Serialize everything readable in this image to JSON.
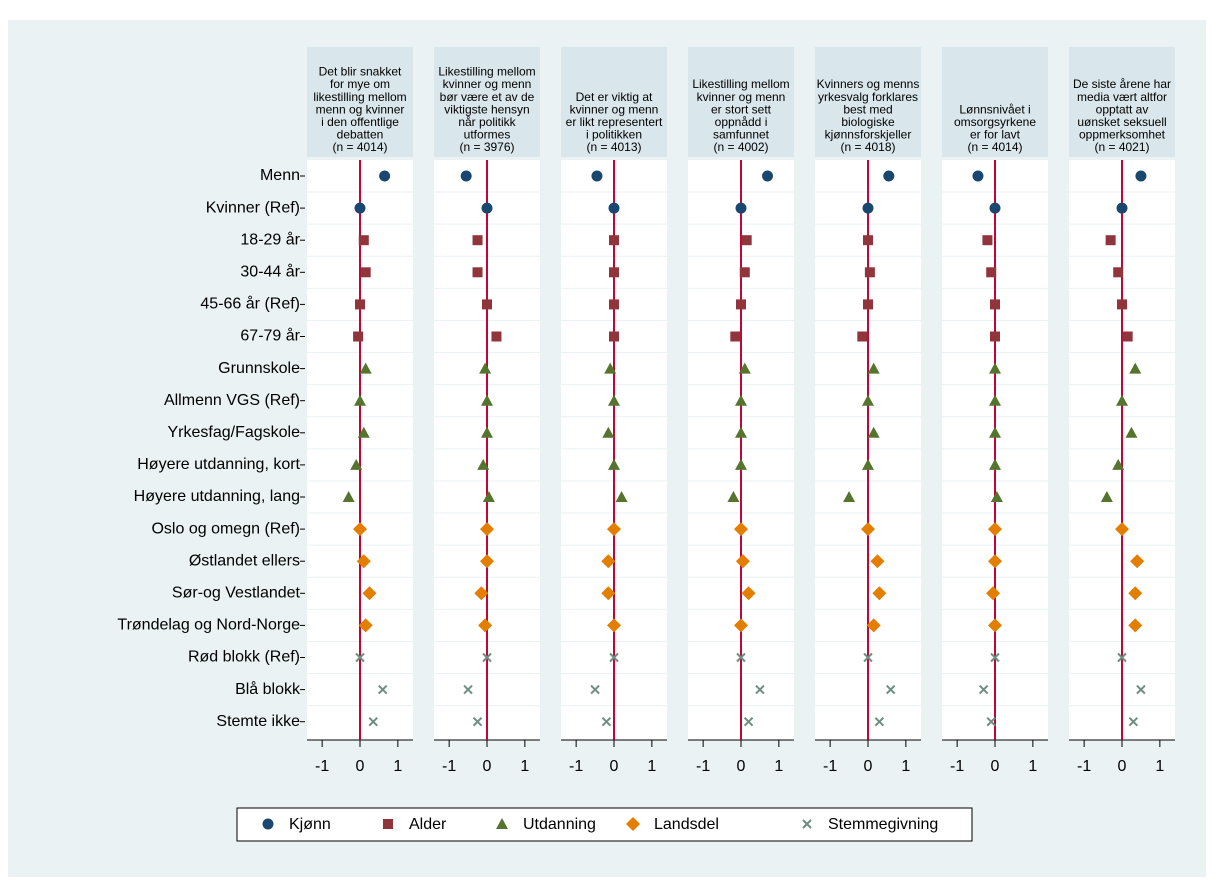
{
  "chart_data": {
    "type": "dot",
    "xlim": [
      -1.4,
      1.4
    ],
    "xticks": [
      -1,
      0,
      1
    ],
    "panels": [
      {
        "title": [
          "Det blir snakket",
          "for mye om",
          "likestilling mellom",
          "menn og kvinner",
          "i den offentlige",
          "debatten",
          "(n = 4014)"
        ]
      },
      {
        "title": [
          "Likestilling mellom",
          "kvinner og menn",
          "bør være et av de",
          "viktigste hensyn",
          "når politikk",
          "utformes",
          "(n = 3976)"
        ]
      },
      {
        "title": [
          "Det er viktig at",
          "kvinner og menn",
          "er likt representert",
          "i politikken",
          "(n = 4013)"
        ]
      },
      {
        "title": [
          "Likestilling mellom",
          "kvinner og menn",
          "er stort sett",
          "oppnådd i",
          "samfunnet",
          "(n = 4002)"
        ]
      },
      {
        "title": [
          "Kvinners og menns",
          "yrkesvalg forklares",
          "best med",
          "biologiske",
          "kjønnsforskjeller",
          "(n = 4018)"
        ]
      },
      {
        "title": [
          "Lønnsnivået i",
          "omsorgsyrkene",
          "er for lavt",
          "(n = 4014)"
        ]
      },
      {
        "title": [
          "De siste årene har",
          "media vært altfor",
          "opptatt av",
          "uønsket seksuell",
          "oppmerksomhet",
          "(n = 4021)"
        ]
      }
    ],
    "series": [
      {
        "name": "Kjønn",
        "color": "#1a476f",
        "marker": "circle",
        "categories": [
          "Menn",
          "Kvinner (Ref)"
        ],
        "values": [
          [
            0.65,
            0
          ],
          [
            -0.55,
            0
          ],
          [
            -0.45,
            0
          ],
          [
            0.7,
            0
          ],
          [
            0.55,
            0
          ],
          [
            -0.45,
            0
          ],
          [
            0.5,
            0
          ]
        ]
      },
      {
        "name": "Alder",
        "color": "#90353b",
        "marker": "square",
        "categories": [
          "18-29 år",
          "30-44 år",
          "45-66 år (Ref)",
          "67-79 år"
        ],
        "values": [
          [
            0.1,
            0.15,
            0,
            -0.05
          ],
          [
            -0.25,
            -0.25,
            0,
            0.25
          ],
          [
            0,
            0,
            0,
            0
          ],
          [
            0.15,
            0.1,
            0,
            -0.15
          ],
          [
            0,
            0.05,
            0,
            -0.15
          ],
          [
            -0.2,
            -0.1,
            0,
            0
          ],
          [
            -0.3,
            -0.1,
            0,
            0.15
          ]
        ]
      },
      {
        "name": "Utdanning",
        "color": "#55752f",
        "marker": "triangle",
        "categories": [
          "Grunnskole",
          "Allmenn VGS (Ref)",
          "Yrkesfag/Fagskole",
          "Høyere utdanning, kort",
          "Høyere utdanning, lang"
        ],
        "values": [
          [
            0.15,
            0,
            0.1,
            -0.1,
            -0.3
          ],
          [
            -0.05,
            0,
            0,
            -0.1,
            0.05
          ],
          [
            -0.1,
            0,
            -0.15,
            0,
            0.2
          ],
          [
            0.1,
            0,
            0,
            0,
            -0.2
          ],
          [
            0.15,
            0,
            0.15,
            0,
            -0.5
          ],
          [
            0,
            0,
            0,
            0,
            0.05
          ],
          [
            0.35,
            0,
            0.25,
            -0.1,
            -0.4
          ]
        ]
      },
      {
        "name": "Landsdel",
        "color": "#e37e00",
        "marker": "diamond",
        "categories": [
          "Oslo og omegn (Ref)",
          "Østlandet ellers",
          "Sør-og Vestlandet",
          "Trøndelag og Nord-Norge"
        ],
        "values": [
          [
            0,
            0.1,
            0.25,
            0.15
          ],
          [
            0,
            0,
            -0.15,
            -0.05
          ],
          [
            0,
            -0.15,
            -0.15,
            0
          ],
          [
            0,
            0.05,
            0.2,
            0
          ],
          [
            0,
            0.25,
            0.3,
            0.15
          ],
          [
            0,
            0,
            -0.05,
            0
          ],
          [
            0,
            0.4,
            0.35,
            0.35
          ]
        ]
      },
      {
        "name": "Stemmegivning",
        "color": "#6e8e84",
        "marker": "x",
        "categories": [
          "Rød blokk (Ref)",
          "Blå blokk",
          "Stemte ikke"
        ],
        "values": [
          [
            0,
            0.6,
            0.35
          ],
          [
            0,
            -0.5,
            -0.25
          ],
          [
            0,
            -0.5,
            -0.2
          ],
          [
            0,
            0.5,
            0.2
          ],
          [
            0,
            0.6,
            0.3
          ],
          [
            0,
            -0.3,
            -0.1
          ],
          [
            0,
            0.5,
            0.3
          ]
        ]
      }
    ]
  }
}
